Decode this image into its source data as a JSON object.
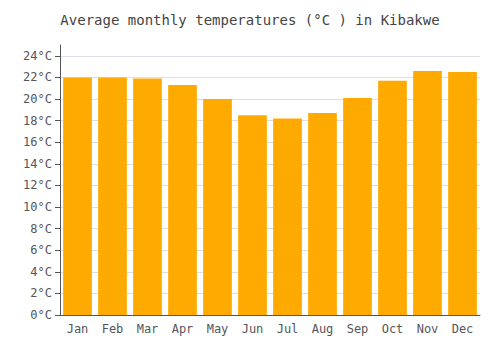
{
  "chart_data": {
    "type": "bar",
    "title": "Average monthly temperatures (°C ) in Kibakwe",
    "categories": [
      "Jan",
      "Feb",
      "Mar",
      "Apr",
      "May",
      "Jun",
      "Jul",
      "Aug",
      "Sep",
      "Oct",
      "Nov",
      "Dec"
    ],
    "values": [
      22.0,
      22.0,
      21.9,
      21.3,
      20.0,
      18.5,
      18.2,
      18.7,
      20.1,
      21.7,
      22.6,
      22.5
    ],
    "color": "#FFAA00",
    "ylim": [
      0,
      25
    ],
    "yticks": [
      {
        "value": 0,
        "label": "0°C"
      },
      {
        "value": 2,
        "label": "2°C"
      },
      {
        "value": 4,
        "label": "4°C"
      },
      {
        "value": 6,
        "label": "6°C"
      },
      {
        "value": 8,
        "label": "8°C"
      },
      {
        "value": 10,
        "label": "10°C"
      },
      {
        "value": 12,
        "label": "12°C"
      },
      {
        "value": 14,
        "label": "14°C"
      },
      {
        "value": 16,
        "label": "16°C"
      },
      {
        "value": 18,
        "label": "18°C"
      },
      {
        "value": 20,
        "label": "20°C"
      },
      {
        "value": 22,
        "label": "22°C"
      },
      {
        "value": 24,
        "label": "24°C"
      }
    ],
    "grid": true
  }
}
